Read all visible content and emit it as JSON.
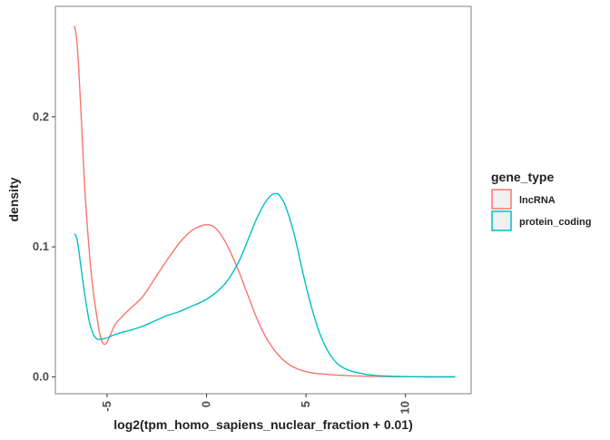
{
  "chart_data": {
    "type": "line",
    "subtype": "density",
    "xlabel": "log2(tpm_homo_sapiens_nuclear_fraction + 0.01)",
    "ylabel": "density",
    "xlim": [
      -7.6,
      13.3
    ],
    "ylim": [
      -0.013,
      0.285
    ],
    "x_ticks": [
      {
        "value": -5,
        "label": "-5"
      },
      {
        "value": 0,
        "label": "0"
      },
      {
        "value": 5,
        "label": "5"
      },
      {
        "value": 10,
        "label": "10"
      }
    ],
    "y_ticks": [
      {
        "value": 0.0,
        "label": "0.0"
      },
      {
        "value": 0.1,
        "label": "0.1"
      },
      {
        "value": 0.2,
        "label": "0.2"
      }
    ],
    "grid": false,
    "legend": {
      "title": "gene_type",
      "position": "right",
      "fill": "#f0f0f0"
    },
    "series": [
      {
        "name": "lncRNA",
        "color": "#F8766D",
        "x": [
          -6.64,
          -6.5,
          -6.3,
          -6.1,
          -5.8,
          -5.5,
          -5.3,
          -5.1,
          -4.9,
          -4.6,
          -4.2,
          -3.8,
          -3.2,
          -2.5,
          -1.8,
          -1.2,
          -0.7,
          -0.3,
          0.0,
          0.3,
          0.6,
          0.9,
          1.2,
          1.6,
          2.0,
          2.5,
          3.0,
          3.6,
          4.2,
          5.0,
          6.0,
          7.0,
          8.0,
          9.0,
          10.0,
          11.0,
          12.5
        ],
        "y": [
          0.27,
          0.255,
          0.2,
          0.14,
          0.08,
          0.045,
          0.029,
          0.025,
          0.03,
          0.04,
          0.047,
          0.053,
          0.062,
          0.078,
          0.094,
          0.106,
          0.113,
          0.116,
          0.117,
          0.116,
          0.112,
          0.105,
          0.096,
          0.082,
          0.066,
          0.046,
          0.03,
          0.017,
          0.009,
          0.004,
          0.002,
          0.001,
          0.0005,
          0.0002,
          0.0001,
          0.0,
          0.0
        ]
      },
      {
        "name": "protein_coding",
        "color": "#00BFC4",
        "x": [
          -6.64,
          -6.5,
          -6.3,
          -6.1,
          -5.9,
          -5.7,
          -5.5,
          -5.3,
          -5.0,
          -4.7,
          -4.3,
          -3.8,
          -3.2,
          -2.6,
          -2.0,
          -1.4,
          -0.8,
          -0.2,
          0.4,
          1.0,
          1.6,
          2.1,
          2.5,
          2.9,
          3.2,
          3.45,
          3.7,
          4.0,
          4.4,
          4.8,
          5.2,
          5.7,
          6.3,
          7.0,
          8.0,
          9.0,
          10.0,
          11.0,
          12.5
        ],
        "y": [
          0.11,
          0.105,
          0.083,
          0.061,
          0.043,
          0.033,
          0.029,
          0.029,
          0.03,
          0.032,
          0.034,
          0.036,
          0.039,
          0.043,
          0.047,
          0.05,
          0.054,
          0.058,
          0.064,
          0.073,
          0.088,
          0.106,
          0.121,
          0.133,
          0.139,
          0.141,
          0.139,
          0.13,
          0.11,
          0.083,
          0.058,
          0.033,
          0.015,
          0.006,
          0.002,
          0.0006,
          0.0002,
          0.0,
          0.0
        ]
      }
    ]
  }
}
